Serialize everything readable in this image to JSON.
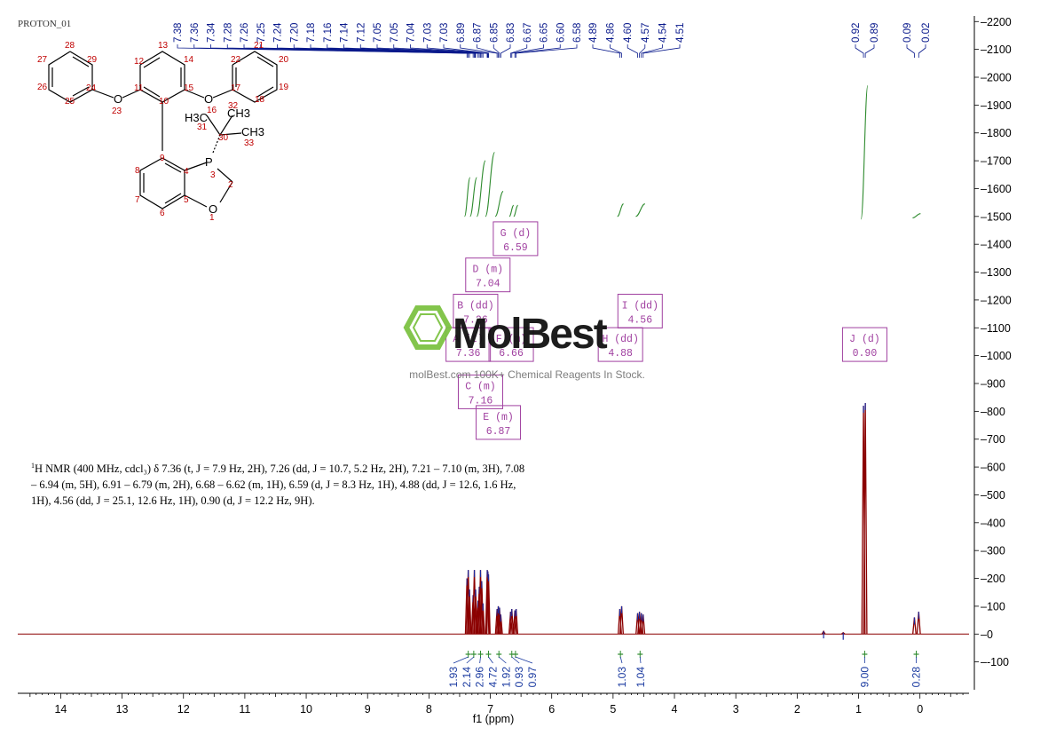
{
  "file_label": "PROTON_01",
  "watermark": {
    "brand": "MolBest",
    "tagline": "molBest.com  100K+ Chemical Reagents In Stock."
  },
  "summary": {
    "nmr_sup": "1",
    "text": "H NMR (400 MHz, cdcl₃) δ 7.36 (t, J = 7.9 Hz, 2H), 7.26 (dd, J = 10.7, 5.2 Hz, 2H), 7.21 – 7.10 (m, 3H), 7.08 – 6.94 (m, 5H), 6.91 – 6.79 (m, 2H), 6.68 – 6.62 (m, 1H), 6.59 (d, J = 8.3 Hz, 1H), 4.88 (dd, J = 12.6, 1.6 Hz, 1H), 4.56 (dd, J = 25.1, 12.6 Hz, 1H), 0.90 (d, J = 12.2 Hz, 9H)."
  },
  "molecule": {
    "atom_numbers": [
      "1",
      "2",
      "3",
      "4",
      "5",
      "6",
      "7",
      "8",
      "9",
      "10",
      "11",
      "12",
      "13",
      "14",
      "15",
      "16",
      "17",
      "18",
      "19",
      "20",
      "21",
      "22",
      "23",
      "24",
      "25",
      "26",
      "27",
      "28",
      "29",
      "30",
      "31",
      "32",
      "33"
    ],
    "heteroatoms": [
      "O",
      "P",
      "O",
      "O"
    ],
    "methyl_labels": [
      "H3C",
      "CH3",
      "CH3"
    ]
  },
  "chart_data": {
    "type": "line",
    "title": "",
    "xlabel": "f1 (ppm)",
    "ylabel": "",
    "xlim": [
      14.7,
      -0.8
    ],
    "ylim": [
      -200,
      2220
    ],
    "x_ticks": [
      14,
      13,
      12,
      11,
      10,
      9,
      8,
      7,
      6,
      5,
      4,
      3,
      2,
      1,
      0
    ],
    "y_ticks": [
      -100,
      0,
      100,
      200,
      300,
      400,
      500,
      600,
      700,
      800,
      900,
      1000,
      1100,
      1200,
      1300,
      1400,
      1500,
      1600,
      1700,
      1800,
      1900,
      2000,
      2100,
      2200
    ],
    "peak_labels": [
      "7.38",
      "7.36",
      "7.34",
      "7.28",
      "7.26",
      "7.25",
      "7.24",
      "7.20",
      "7.18",
      "7.16",
      "7.14",
      "7.12",
      "7.05",
      "7.05",
      "7.04",
      "7.03",
      "7.03",
      "6.89",
      "6.87",
      "6.85",
      "6.83",
      "6.67",
      "6.65",
      "6.60",
      "6.58",
      "4.89",
      "4.86",
      "4.60",
      "4.57",
      "4.54",
      "4.51",
      "0.92",
      "0.89",
      "0.09",
      "0.02"
    ],
    "peak_labels_style": {
      "color": "#0a1a8c"
    },
    "spectrum_peaks": [
      {
        "ppm": 7.38,
        "height": 200
      },
      {
        "ppm": 7.36,
        "height": 230
      },
      {
        "ppm": 7.34,
        "height": 160
      },
      {
        "ppm": 7.28,
        "height": 140
      },
      {
        "ppm": 7.26,
        "height": 230
      },
      {
        "ppm": 7.24,
        "height": 160
      },
      {
        "ppm": 7.2,
        "height": 120
      },
      {
        "ppm": 7.18,
        "height": 170
      },
      {
        "ppm": 7.16,
        "height": 230
      },
      {
        "ppm": 7.14,
        "height": 190
      },
      {
        "ppm": 7.12,
        "height": 110
      },
      {
        "ppm": 7.05,
        "height": 230
      },
      {
        "ppm": 7.04,
        "height": 225
      },
      {
        "ppm": 7.03,
        "height": 215
      },
      {
        "ppm": 6.89,
        "height": 90
      },
      {
        "ppm": 6.87,
        "height": 100
      },
      {
        "ppm": 6.85,
        "height": 95
      },
      {
        "ppm": 6.83,
        "height": 70
      },
      {
        "ppm": 6.67,
        "height": 80
      },
      {
        "ppm": 6.65,
        "height": 90
      },
      {
        "ppm": 6.6,
        "height": 85
      },
      {
        "ppm": 6.58,
        "height": 90
      },
      {
        "ppm": 4.89,
        "height": 90
      },
      {
        "ppm": 4.86,
        "height": 100
      },
      {
        "ppm": 4.6,
        "height": 75
      },
      {
        "ppm": 4.57,
        "height": 80
      },
      {
        "ppm": 4.54,
        "height": 75
      },
      {
        "ppm": 4.51,
        "height": 70
      },
      {
        "ppm": 1.57,
        "height": 10
      },
      {
        "ppm": 1.25,
        "height": 5
      },
      {
        "ppm": 0.92,
        "height": 820
      },
      {
        "ppm": 0.89,
        "height": 830
      },
      {
        "ppm": 0.09,
        "height": 60
      },
      {
        "ppm": 0.02,
        "height": 80
      }
    ],
    "integral_curves": [
      {
        "from": 7.42,
        "to": 7.33,
        "base": 1500,
        "rise": 140
      },
      {
        "from": 7.33,
        "to": 7.22,
        "base": 1500,
        "rise": 140
      },
      {
        "from": 7.22,
        "to": 7.08,
        "base": 1500,
        "rise": 200
      },
      {
        "from": 7.08,
        "to": 6.93,
        "base": 1500,
        "rise": 230
      },
      {
        "from": 6.92,
        "to": 6.79,
        "base": 1500,
        "rise": 90
      },
      {
        "from": 6.69,
        "to": 6.62,
        "base": 1500,
        "rise": 40
      },
      {
        "from": 6.62,
        "to": 6.55,
        "base": 1500,
        "rise": 40
      },
      {
        "from": 4.93,
        "to": 4.83,
        "base": 1500,
        "rise": 45
      },
      {
        "from": 4.63,
        "to": 4.48,
        "base": 1500,
        "rise": 45
      },
      {
        "from": 0.96,
        "to": 0.85,
        "base": 1490,
        "rise": 480
      },
      {
        "from": 0.12,
        "to": -0.01,
        "base": 1495,
        "rise": 15
      }
    ],
    "multiplet_boxes": [
      {
        "label": "G (d)",
        "value": "6.59",
        "ppm": 6.59,
        "y": 1420
      },
      {
        "label": "D (m)",
        "value": "7.04",
        "ppm": 7.04,
        "y": 1290
      },
      {
        "label": "B (dd)",
        "value": "7.26",
        "ppm": 7.24,
        "y": 1160
      },
      {
        "label": "I (dd)",
        "value": "4.56",
        "ppm": 4.56,
        "y": 1160
      },
      {
        "label": "A (t)",
        "value": "7.36",
        "ppm": 7.36,
        "y": 1040
      },
      {
        "label": "F (m)",
        "value": "6.66",
        "ppm": 6.66,
        "y": 1040
      },
      {
        "label": "H (dd)",
        "value": "4.88",
        "ppm": 4.88,
        "y": 1040
      },
      {
        "label": "J (d)",
        "value": "0.90",
        "ppm": 0.9,
        "y": 1040
      },
      {
        "label": "C (m)",
        "value": "7.16",
        "ppm": 7.16,
        "y": 870
      },
      {
        "label": "E (m)",
        "value": "6.87",
        "ppm": 6.87,
        "y": 760
      }
    ],
    "integrations": [
      {
        "value": "1.93",
        "ppm": 7.36
      },
      {
        "value": "2.14",
        "ppm": 7.27
      },
      {
        "value": "2.96",
        "ppm": 7.16
      },
      {
        "value": "4.72",
        "ppm": 7.03
      },
      {
        "value": "1.92",
        "ppm": 6.86
      },
      {
        "value": "0.93",
        "ppm": 6.65
      },
      {
        "value": "0.97",
        "ppm": 6.59
      },
      {
        "value": "1.03",
        "ppm": 4.88
      },
      {
        "value": "1.04",
        "ppm": 4.56
      },
      {
        "value": "9.00",
        "ppm": 0.9
      },
      {
        "value": "0.28",
        "ppm": 0.06
      }
    ],
    "colors": {
      "spectrum": "#8b0000",
      "peak_tops": "#1a2aa0",
      "peak_label": "#0a1a8c",
      "integral": "#2e8b2e",
      "box": "#a040a0",
      "axis": "#000000",
      "integration_label": "#1a3aa0"
    }
  }
}
